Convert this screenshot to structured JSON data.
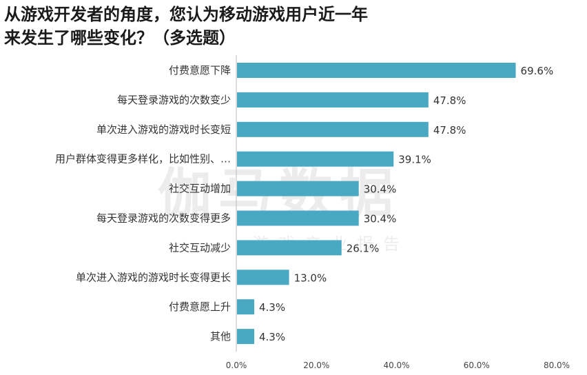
{
  "title_lines": [
    "从游戏开发者的角度，您认为移动游戏用户近一年",
    "来发生了哪些变化？（多选题）"
  ],
  "watermark": {
    "main": "伽马数据",
    "sub": "游戏产业报告"
  },
  "colors": {
    "bar": "#49a9c3",
    "axis": "#bbbbbb"
  },
  "chart_data": {
    "type": "bar",
    "orientation": "horizontal",
    "title": "从游戏开发者的角度，您认为移动游戏用户近一年来发生了哪些变化？（多选题）",
    "categories": [
      "付费意愿下降",
      "每天登录游戏的次数变少",
      "单次进入游戏的游戏时长变短",
      "用户群体变得更多样化，比如性别、…",
      "社交互动增加",
      "每天登录游戏的次数变得更多",
      "社交互动减少",
      "单次进入游戏的游戏时长变得更长",
      "付费意愿上升",
      "其他"
    ],
    "values": [
      69.6,
      47.8,
      47.8,
      39.1,
      30.4,
      30.4,
      26.1,
      13.0,
      4.3,
      4.3
    ],
    "value_labels": [
      "69.6%",
      "47.8%",
      "47.8%",
      "39.1%",
      "30.4%",
      "30.4%",
      "26.1%",
      "13.0%",
      "4.3%",
      "4.3%"
    ],
    "xlim": [
      0,
      80
    ],
    "xticks": [
      0,
      20,
      40,
      60,
      80
    ],
    "xtick_labels": [
      "0.0%",
      "20.0%",
      "40.0%",
      "60.0%",
      "80.0%"
    ],
    "grid": false,
    "legend": "none"
  }
}
